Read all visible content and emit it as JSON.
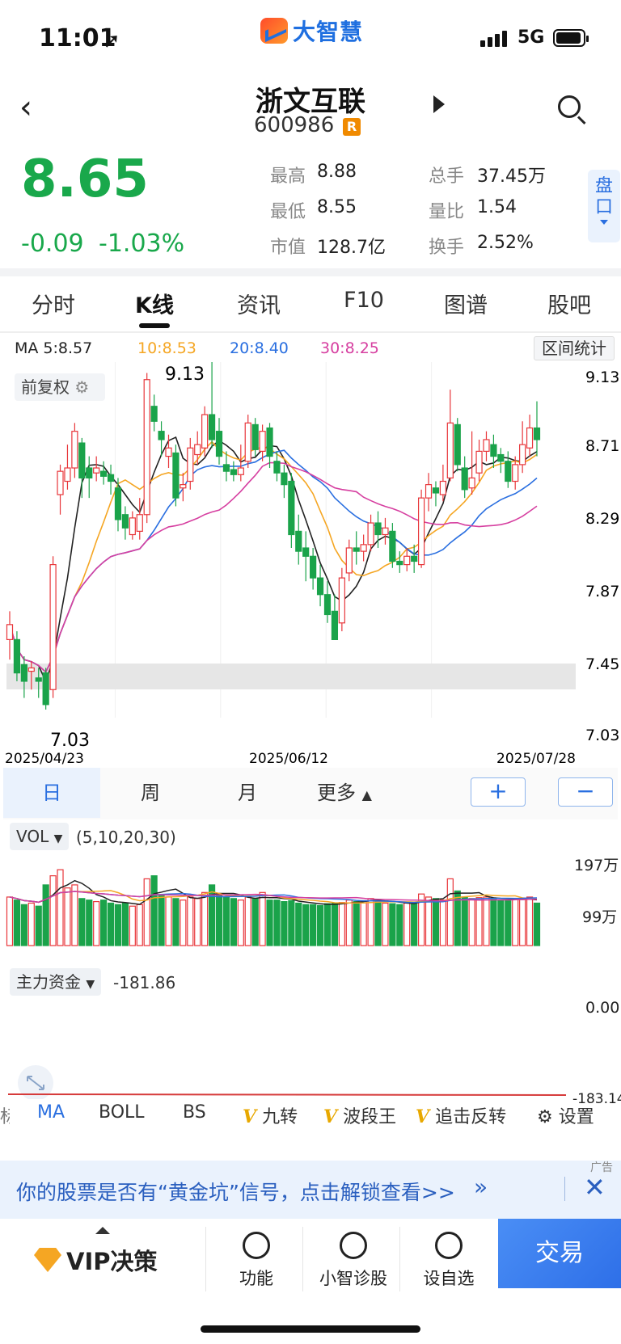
{
  "status_bar": {
    "time": "11:01",
    "network": "5G",
    "app_logo": "大智慧"
  },
  "header": {
    "stock_name": "浙文互联",
    "stock_code": "600986",
    "badge": "R"
  },
  "quote": {
    "price": "8.65",
    "change": "-0.09",
    "change_pct": "-1.03%",
    "stats": [
      {
        "label": "最高",
        "value": "8.88"
      },
      {
        "label": "总手",
        "value": "37.45万"
      },
      {
        "label": "最低",
        "value": "8.55"
      },
      {
        "label": "量比",
        "value": "1.54"
      },
      {
        "label": "市值",
        "value": "128.7亿"
      },
      {
        "label": "换手",
        "value": "2.52%"
      }
    ],
    "pankou": "盘口"
  },
  "tabs": [
    {
      "label": "分时"
    },
    {
      "label": "K线"
    },
    {
      "label": "资讯"
    },
    {
      "label": "F10"
    },
    {
      "label": "图谱"
    },
    {
      "label": "股吧"
    }
  ],
  "ma_legend": {
    "ma5": "MA 5:8.57",
    "ma10": "10:8.53",
    "ma20": "20:8.40",
    "ma30": "30:8.25",
    "colors": {
      "ma5": "#222222",
      "ma10": "#f5a623",
      "ma20": "#2a6fe0",
      "ma30": "#d63fa0"
    }
  },
  "range_stats_button": "区间统计",
  "adjust_button": "前复权",
  "kline": {
    "y_ticks": [
      "9.13",
      "8.71",
      "8.29",
      "7.87",
      "7.45",
      "7.03"
    ],
    "dates": [
      "2025/04/23",
      "2025/06/12",
      "2025/07/28"
    ],
    "high_label": "9.13",
    "low_label": "7.03"
  },
  "periods": {
    "day": "日",
    "week": "周",
    "month": "月",
    "more": "更多"
  },
  "zoom": {
    "in": "+",
    "out": "−"
  },
  "volume": {
    "label": "VOL",
    "params": "(5,10,20,30)",
    "y_top": "197万",
    "y_mid": "99万"
  },
  "capital_flow": {
    "label": "主力资金",
    "value": "-181.86",
    "y_top": "0.00",
    "y_bottom": "-183.14"
  },
  "indicator_bar": [
    {
      "label": "标"
    },
    {
      "label": "MA"
    },
    {
      "label": "BOLL"
    },
    {
      "label": "BS"
    },
    {
      "label": "九转"
    },
    {
      "label": "波段王"
    },
    {
      "label": "追击反转"
    },
    {
      "label": "设置"
    }
  ],
  "ad": {
    "text": "你的股票是否有“黄金坑”信号，点击解锁查看>>",
    "tag": "广告"
  },
  "bottom_nav": {
    "vip": "VIP决策",
    "items": [
      {
        "label": "功能"
      },
      {
        "label": "小智诊股"
      },
      {
        "label": "设自选"
      }
    ],
    "trade": "交易"
  },
  "chart_data": {
    "type": "candlestick",
    "title": "",
    "date_range": [
      "2025/04/23",
      "2025/07/28"
    ],
    "ylim": [
      7.03,
      9.13
    ],
    "candles": [
      [
        7.45,
        7.54,
        7.33,
        7.62
      ],
      [
        7.45,
        7.25,
        7.2,
        7.5
      ],
      [
        7.3,
        7.2,
        7.1,
        7.35
      ],
      [
        7.26,
        7.28,
        7.15,
        7.32
      ],
      [
        7.22,
        7.2,
        7.1,
        7.28
      ],
      [
        7.25,
        7.06,
        7.03,
        7.28
      ],
      [
        7.15,
        7.9,
        7.1,
        7.95
      ],
      [
        8.32,
        8.46,
        8.2,
        8.5
      ],
      [
        8.4,
        8.48,
        8.35,
        8.62
      ],
      [
        8.48,
        8.7,
        8.42,
        8.75
      ],
      [
        8.63,
        8.42,
        8.3,
        8.66
      ],
      [
        8.48,
        8.42,
        8.3,
        8.55
      ],
      [
        8.45,
        8.48,
        8.4,
        8.55
      ],
      [
        8.46,
        8.43,
        8.38,
        8.52
      ],
      [
        8.44,
        8.4,
        8.32,
        8.5
      ],
      [
        8.36,
        8.17,
        8.1,
        8.42
      ],
      [
        8.2,
        8.12,
        8.05,
        8.25
      ],
      [
        8.08,
        8.18,
        8.05,
        8.22
      ],
      [
        8.1,
        8.2,
        8.05,
        8.3
      ],
      [
        8.2,
        9.01,
        8.15,
        9.05
      ],
      [
        8.85,
        8.76,
        8.7,
        8.92
      ],
      [
        8.7,
        8.65,
        8.55,
        8.76
      ],
      [
        8.55,
        8.6,
        8.48,
        8.68
      ],
      [
        8.57,
        8.3,
        8.25,
        8.62
      ],
      [
        8.36,
        8.38,
        8.28,
        8.45
      ],
      [
        8.4,
        8.6,
        8.35,
        8.66
      ],
      [
        8.56,
        8.62,
        8.5,
        8.7
      ],
      [
        8.6,
        8.8,
        8.55,
        8.85
      ],
      [
        8.8,
        8.65,
        8.6,
        9.13
      ],
      [
        8.7,
        8.55,
        8.5,
        8.78
      ],
      [
        8.5,
        8.46,
        8.4,
        8.58
      ],
      [
        8.47,
        8.44,
        8.4,
        8.52
      ],
      [
        8.44,
        8.48,
        8.4,
        8.62
      ],
      [
        8.52,
        8.75,
        8.48,
        8.8
      ],
      [
        8.74,
        8.59,
        8.55,
        8.78
      ],
      [
        8.58,
        8.7,
        8.52,
        8.74
      ],
      [
        8.72,
        8.55,
        8.48,
        8.75
      ],
      [
        8.52,
        8.45,
        8.4,
        8.58
      ],
      [
        8.45,
        8.38,
        8.3,
        8.5
      ],
      [
        8.4,
        8.08,
        8.0,
        8.45
      ],
      [
        8.1,
        7.98,
        7.9,
        8.2
      ],
      [
        8.0,
        7.95,
        7.8,
        8.1
      ],
      [
        7.95,
        7.82,
        7.75,
        8.0
      ],
      [
        7.82,
        7.72,
        7.65,
        7.9
      ],
      [
        7.72,
        7.6,
        7.55,
        7.8
      ],
      [
        7.62,
        7.45,
        7.45,
        7.72
      ],
      [
        7.55,
        7.82,
        7.5,
        7.88
      ],
      [
        7.85,
        8.0,
        7.8,
        8.05
      ],
      [
        8.0,
        7.98,
        7.9,
        8.1
      ],
      [
        7.98,
        8.02,
        7.92,
        8.08
      ],
      [
        8.02,
        8.15,
        7.98,
        8.2
      ],
      [
        8.15,
        8.08,
        8.0,
        8.22
      ],
      [
        8.08,
        8.12,
        8.02,
        8.18
      ],
      [
        8.1,
        7.92,
        7.88,
        8.15
      ],
      [
        7.92,
        7.9,
        7.85,
        7.98
      ],
      [
        7.9,
        7.95,
        7.86,
        8.0
      ],
      [
        7.95,
        7.92,
        7.85,
        8.02
      ],
      [
        7.9,
        8.3,
        7.88,
        8.35
      ],
      [
        8.3,
        8.38,
        8.22,
        8.45
      ],
      [
        8.36,
        8.33,
        8.25,
        8.4
      ],
      [
        8.32,
        8.4,
        8.28,
        8.5
      ],
      [
        8.42,
        8.75,
        8.4,
        8.95
      ],
      [
        8.74,
        8.5,
        8.46,
        8.78
      ],
      [
        8.48,
        8.35,
        8.3,
        8.55
      ],
      [
        8.36,
        8.42,
        8.32,
        8.7
      ],
      [
        8.45,
        8.58,
        8.4,
        8.65
      ],
      [
        8.58,
        8.65,
        8.52,
        8.7
      ],
      [
        8.62,
        8.55,
        8.48,
        8.68
      ],
      [
        8.56,
        8.52,
        8.45,
        8.6
      ],
      [
        8.52,
        8.4,
        8.36,
        8.58
      ],
      [
        8.4,
        8.5,
        8.35,
        8.55
      ],
      [
        8.5,
        8.62,
        8.45,
        8.76
      ],
      [
        8.6,
        8.72,
        8.55,
        8.8
      ],
      [
        8.72,
        8.65,
        8.55,
        8.88
      ]
    ],
    "volume": [
      80,
      70,
      55,
      60,
      50,
      120,
      150,
      170,
      110,
      120,
      75,
      70,
      65,
      70,
      60,
      55,
      60,
      50,
      55,
      140,
      150,
      85,
      80,
      75,
      70,
      80,
      75,
      95,
      120,
      90,
      80,
      75,
      70,
      80,
      75,
      95,
      70,
      70,
      65,
      68,
      60,
      55,
      55,
      52,
      58,
      60,
      62,
      70,
      65,
      68,
      75,
      68,
      60,
      58,
      55,
      60,
      58,
      90,
      80,
      75,
      70,
      140,
      100,
      80,
      75,
      78,
      80,
      75,
      70,
      68,
      72,
      75,
      80,
      60
    ],
    "capital_flow_values": "near constant around -181.86"
  }
}
